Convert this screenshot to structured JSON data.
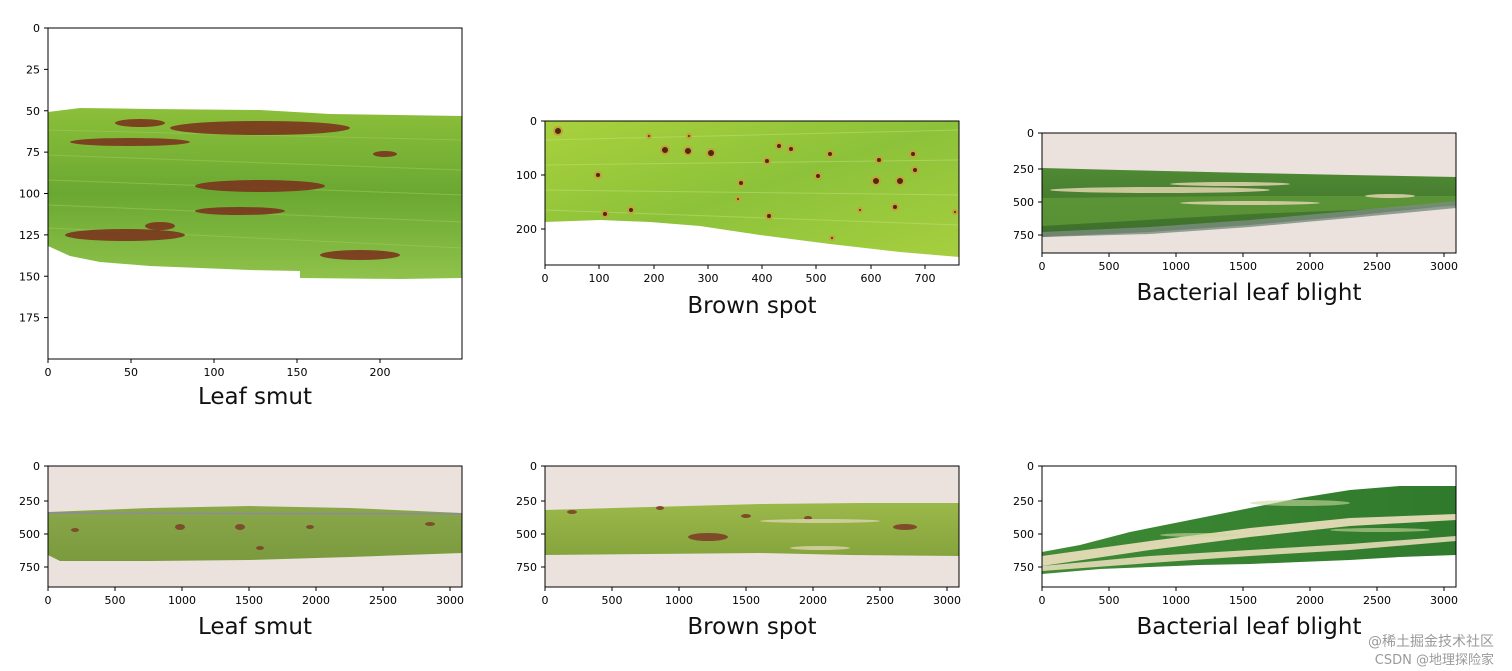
{
  "panels": [
    {
      "title": "Leaf smut",
      "image": "leaf-smut-close-up",
      "xticks": [
        "0",
        "50",
        "100",
        "150",
        "200"
      ],
      "yticks": [
        "0",
        "25",
        "50",
        "75",
        "100",
        "125",
        "150",
        "175"
      ]
    },
    {
      "title": "Brown spot",
      "image": "brown-spot-close-up",
      "xticks": [
        "0",
        "100",
        "200",
        "300",
        "400",
        "500",
        "600",
        "700"
      ],
      "yticks": [
        "0",
        "100",
        "200"
      ]
    },
    {
      "title": "Bacterial leaf blight",
      "image": "bacterial-leaf-blight-dark-leaf",
      "xticks": [
        "0",
        "500",
        "1000",
        "1500",
        "2000",
        "2500",
        "3000"
      ],
      "yticks": [
        "0",
        "250",
        "500",
        "750"
      ]
    },
    {
      "title": "Leaf smut",
      "image": "leaf-smut-whole-leaf",
      "xticks": [
        "0",
        "500",
        "1000",
        "1500",
        "2000",
        "2500",
        "3000"
      ],
      "yticks": [
        "0",
        "250",
        "500",
        "750"
      ]
    },
    {
      "title": "Brown spot",
      "image": "brown-spot-whole-leaf",
      "xticks": [
        "0",
        "500",
        "1000",
        "1500",
        "2000",
        "2500",
        "3000"
      ],
      "yticks": [
        "0",
        "250",
        "500",
        "750"
      ]
    },
    {
      "title": "Bacterial leaf blight",
      "image": "bacterial-leaf-blight-whole-leaf",
      "xticks": [
        "0",
        "500",
        "1000",
        "1500",
        "2000",
        "2500",
        "3000"
      ],
      "yticks": [
        "0",
        "250",
        "500",
        "750"
      ]
    }
  ],
  "watermark": {
    "line1": "@稀土掘金技术社区",
    "line2": "CSDN @地理探险家"
  }
}
